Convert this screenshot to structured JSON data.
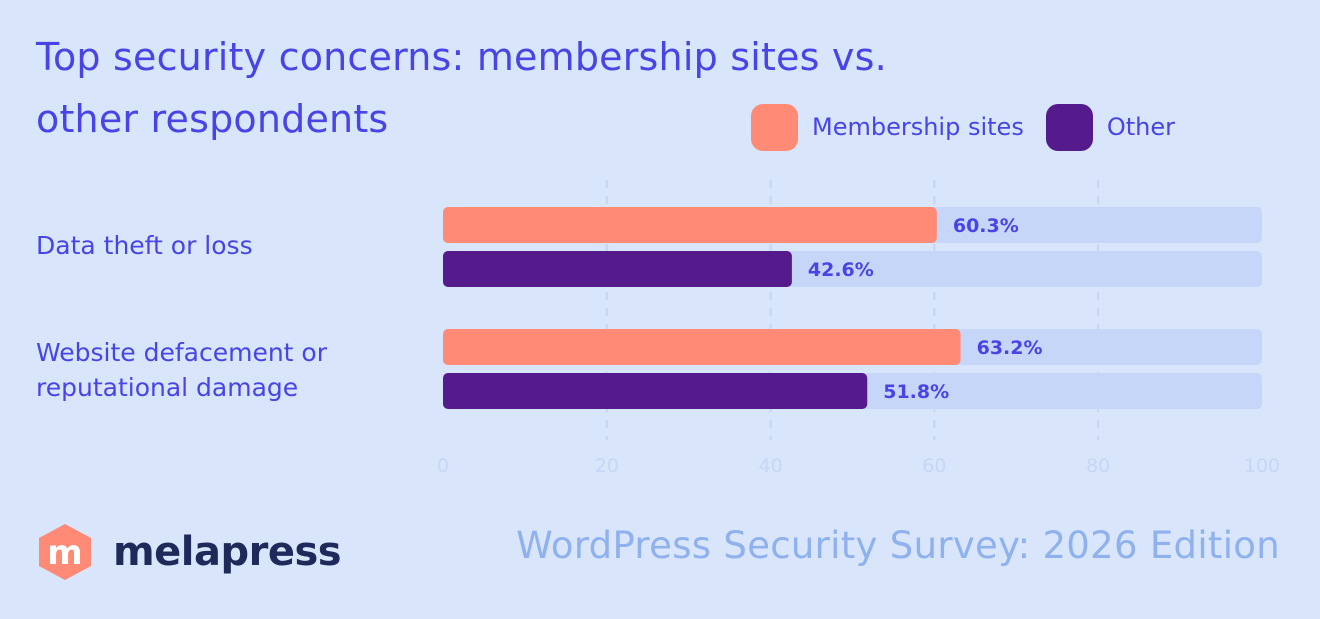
{
  "chart_data": {
    "type": "bar",
    "orientation": "horizontal",
    "title": "Top security concerns: membership sites vs. other respondents",
    "title_lines": [
      "Top security concerns: membership sites vs.",
      "other respondents"
    ],
    "categories": [
      "Data theft or loss",
      "Website defacement or reputational damage"
    ],
    "category_lines": [
      [
        "Data theft or loss"
      ],
      [
        "Website defacement or",
        "reputational damage"
      ]
    ],
    "series": [
      {
        "name": "Membership sites",
        "values": [
          60.3,
          63.2
        ],
        "labels": [
          "60.3%",
          "63.2%"
        ],
        "color": "#ff8a75"
      },
      {
        "name": "Other",
        "values": [
          42.6,
          51.8
        ],
        "labels": [
          "42.6%",
          "51.8%"
        ],
        "color": "#551a8b"
      }
    ],
    "xlim": [
      0,
      100
    ],
    "xticks": [
      "0",
      "20",
      "40",
      "60",
      "80",
      "100"
    ],
    "grid": true,
    "legend": "top-right",
    "track_color": "#c5d6f8",
    "label_color": "#4a43e6"
  },
  "footer": {
    "brand": "melapress",
    "logo_letter": "m",
    "caption": "WordPress Security Survey: 2026 Edition"
  }
}
